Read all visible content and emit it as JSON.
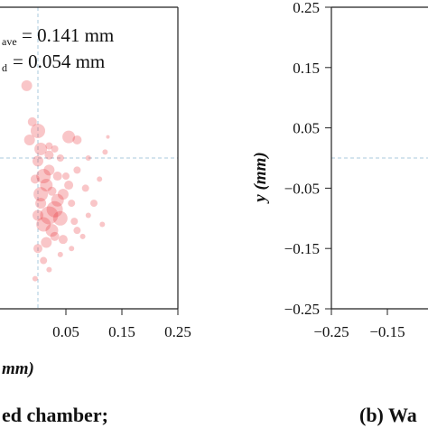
{
  "chart_data": [
    {
      "type": "scatter",
      "panel": "left",
      "xlim": [
        -0.25,
        0.25
      ],
      "ylim": [
        -0.25,
        0.25
      ],
      "x_ticks_visible": [
        "0.05",
        "0.15",
        "0.25"
      ],
      "xlabel_fragment": "mm)",
      "annotations": [
        {
          "sub": "ave",
          "text": " = 0.141 mm"
        },
        {
          "sub": "d",
          "text": " = 0.054 mm"
        }
      ],
      "caption_fragment": "ed chamber;",
      "reference_lines": {
        "x": 0.0,
        "y": 0.0,
        "style": "dashed",
        "color": "#a9c8dc"
      },
      "marker_color": "#e8333a",
      "points": [
        {
          "x": -0.02,
          "y": 0.12,
          "s": 6
        },
        {
          "x": -0.01,
          "y": 0.06,
          "s": 5
        },
        {
          "x": -0.015,
          "y": 0.03,
          "s": 6
        },
        {
          "x": 0.0,
          "y": 0.045,
          "s": 8
        },
        {
          "x": 0.005,
          "y": 0.015,
          "s": 7
        },
        {
          "x": 0.0,
          "y": -0.005,
          "s": 6
        },
        {
          "x": -0.005,
          "y": -0.035,
          "s": 5
        },
        {
          "x": 0.01,
          "y": -0.03,
          "s": 8
        },
        {
          "x": 0.02,
          "y": -0.02,
          "s": 6
        },
        {
          "x": 0.015,
          "y": -0.045,
          "s": 7
        },
        {
          "x": 0.025,
          "y": -0.055,
          "s": 5
        },
        {
          "x": 0.005,
          "y": -0.06,
          "s": 8
        },
        {
          "x": 0.03,
          "y": -0.085,
          "s": 9
        },
        {
          "x": 0.02,
          "y": -0.095,
          "s": 10
        },
        {
          "x": 0.035,
          "y": -0.07,
          "s": 7
        },
        {
          "x": 0.045,
          "y": -0.06,
          "s": 6
        },
        {
          "x": 0.04,
          "y": -0.1,
          "s": 8
        },
        {
          "x": 0.025,
          "y": -0.12,
          "s": 7
        },
        {
          "x": 0.01,
          "y": -0.11,
          "s": 8
        },
        {
          "x": 0.0,
          "y": -0.095,
          "s": 6
        },
        {
          "x": 0.015,
          "y": -0.14,
          "s": 6
        },
        {
          "x": 0.03,
          "y": -0.13,
          "s": 5
        },
        {
          "x": 0.045,
          "y": -0.135,
          "s": 5
        },
        {
          "x": 0.055,
          "y": -0.045,
          "s": 5
        },
        {
          "x": 0.06,
          "y": -0.075,
          "s": 4
        },
        {
          "x": 0.07,
          "y": -0.02,
          "s": 4
        },
        {
          "x": 0.065,
          "y": -0.105,
          "s": 4
        },
        {
          "x": 0.085,
          "y": -0.05,
          "s": 4
        },
        {
          "x": 0.1,
          "y": -0.075,
          "s": 4
        },
        {
          "x": 0.09,
          "y": -0.095,
          "s": 3
        },
        {
          "x": 0.11,
          "y": -0.035,
          "s": 3
        },
        {
          "x": 0.12,
          "y": 0.01,
          "s": 3
        },
        {
          "x": 0.125,
          "y": 0.035,
          "s": 2
        },
        {
          "x": 0.115,
          "y": -0.11,
          "s": 3
        },
        {
          "x": 0.08,
          "y": -0.13,
          "s": 3
        },
        {
          "x": 0.055,
          "y": 0.035,
          "s": 7
        },
        {
          "x": 0.07,
          "y": 0.03,
          "s": 5
        },
        {
          "x": 0.04,
          "y": 0.0,
          "s": 4
        },
        {
          "x": 0.02,
          "y": 0.02,
          "s": 4
        },
        {
          "x": 0.0,
          "y": -0.15,
          "s": 5
        },
        {
          "x": 0.01,
          "y": -0.17,
          "s": 4
        },
        {
          "x": 0.02,
          "y": -0.185,
          "s": 3
        },
        {
          "x": -0.005,
          "y": -0.2,
          "s": 3
        },
        {
          "x": 0.04,
          "y": -0.16,
          "s": 3
        },
        {
          "x": 0.06,
          "y": -0.15,
          "s": 3
        },
        {
          "x": 0.07,
          "y": -0.12,
          "s": 4
        },
        {
          "x": 0.035,
          "y": -0.03,
          "s": 5
        },
        {
          "x": 0.05,
          "y": -0.03,
          "s": 4
        },
        {
          "x": 0.005,
          "y": -0.075,
          "s": 6
        },
        {
          "x": 0.02,
          "y": 0.005,
          "s": 5
        },
        {
          "x": 0.03,
          "y": 0.015,
          "s": 4
        },
        {
          "x": 0.09,
          "y": 0.0,
          "s": 3
        }
      ]
    },
    {
      "type": "scatter",
      "panel": "right",
      "xlim": [
        -0.25,
        0.25
      ],
      "ylim": [
        -0.25,
        0.25
      ],
      "ylabel": "y (mm)",
      "y_ticks": [
        "0.25",
        "0.15",
        "0.05",
        "-0.05",
        "-0.15",
        "-0.25"
      ],
      "x_ticks_visible": [
        "-0.25",
        "-0.15"
      ],
      "caption_fragment": "(b) Wa",
      "reference_lines": {
        "y": 0.0,
        "style": "dashed",
        "color": "#a9c8dc"
      },
      "points": []
    }
  ]
}
